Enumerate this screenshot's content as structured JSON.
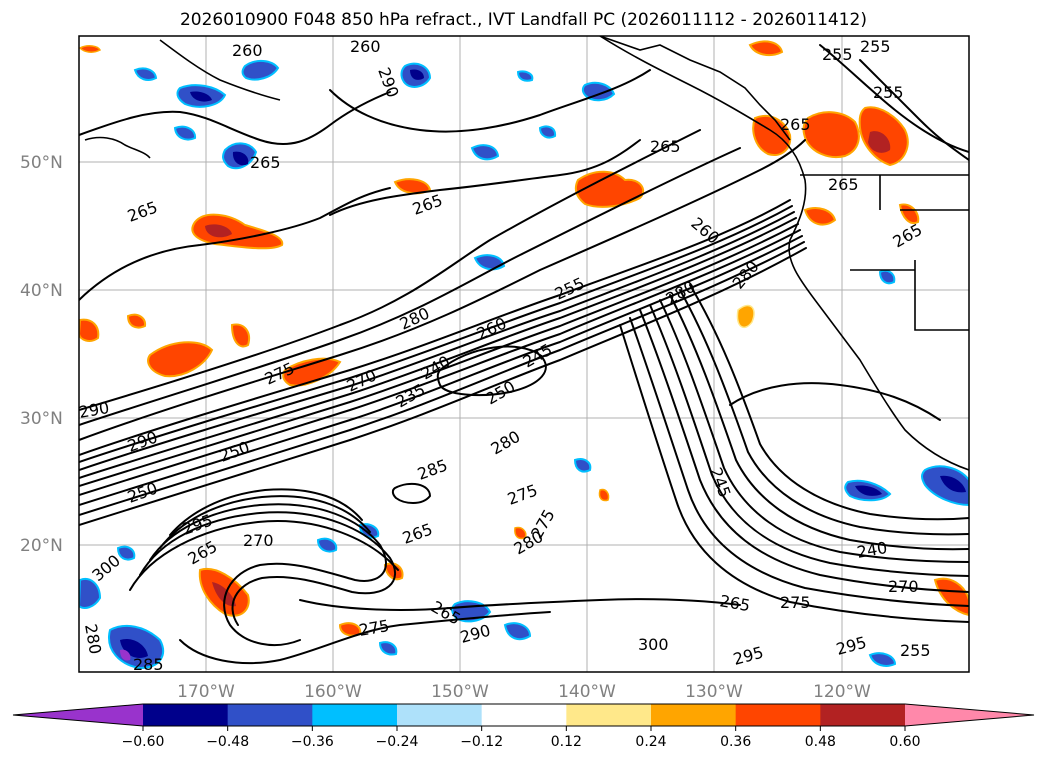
{
  "title": "2026010900 F048 850 hPa refract., IVT Landfall PC (2026011112 - 2026011412)",
  "map": {
    "lat_labels": [
      "50°N",
      "40°N",
      "30°N",
      "20°N"
    ],
    "lon_labels": [
      "170°W",
      "160°W",
      "150°W",
      "140°W",
      "130°W",
      "120°W"
    ],
    "contour_labels": [
      "260",
      "265",
      "265",
      "255",
      "255",
      "255",
      "265",
      "265",
      "265",
      "265",
      "260",
      "280",
      "255",
      "280",
      "260",
      "270",
      "275",
      "235",
      "240",
      "245",
      "250",
      "280",
      "290",
      "250",
      "285",
      "275",
      "295",
      "265",
      "270",
      "265",
      "300",
      "280",
      "290",
      "275",
      "265",
      "245",
      "240",
      "270",
      "265",
      "275",
      "300",
      "295",
      "295",
      "255",
      "285",
      "290",
      "260",
      "250",
      "280",
      "275",
      "265",
      "280",
      "290"
    ],
    "grid": true
  },
  "colorbar": {
    "colors": [
      "#9933cc",
      "#00008b",
      "#3050c8",
      "#00bfff",
      "#aee1fa",
      "#ffffff",
      "#ffe88a",
      "#ffa500",
      "#ff4500",
      "#b22222",
      "#ff88aa"
    ],
    "ticks": [
      "−0.60",
      "−0.48",
      "−0.36",
      "−0.24",
      "−0.12",
      "0.12",
      "0.24",
      "0.36",
      "0.48",
      "0.60"
    ],
    "extend": "both"
  }
}
